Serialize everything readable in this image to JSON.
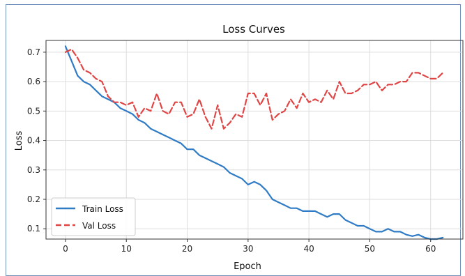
{
  "chart_data": {
    "type": "line",
    "title": "Loss Curves",
    "xlabel": "Epoch",
    "ylabel": "Loss",
    "xlim": [
      -3.2,
      65.3
    ],
    "ylim": [
      0.065,
      0.74
    ],
    "xticks": [
      0,
      10,
      20,
      30,
      40,
      50,
      60
    ],
    "yticks": [
      0.1,
      0.2,
      0.3,
      0.4,
      0.5,
      0.6,
      0.7
    ],
    "grid": true,
    "legend": "lower-left",
    "colors": {
      "train": "#2f7bc5",
      "val": "#e04545"
    },
    "x": [
      0,
      1,
      2,
      3,
      4,
      5,
      6,
      7,
      8,
      9,
      10,
      11,
      12,
      13,
      14,
      15,
      16,
      17,
      18,
      19,
      20,
      21,
      22,
      23,
      24,
      25,
      26,
      27,
      28,
      29,
      30,
      31,
      32,
      33,
      34,
      35,
      36,
      37,
      38,
      39,
      40,
      41,
      42,
      43,
      44,
      45,
      46,
      47,
      48,
      49,
      50,
      51,
      52,
      53,
      54,
      55,
      56,
      57,
      58,
      59,
      60,
      61,
      62
    ],
    "series": [
      {
        "name": "Train Loss",
        "style": "solid",
        "values": [
          0.72,
          0.67,
          0.62,
          0.6,
          0.59,
          0.57,
          0.55,
          0.54,
          0.53,
          0.51,
          0.5,
          0.49,
          0.47,
          0.46,
          0.44,
          0.43,
          0.42,
          0.41,
          0.4,
          0.39,
          0.37,
          0.37,
          0.35,
          0.34,
          0.33,
          0.32,
          0.31,
          0.29,
          0.28,
          0.27,
          0.25,
          0.26,
          0.25,
          0.23,
          0.2,
          0.19,
          0.18,
          0.17,
          0.17,
          0.16,
          0.16,
          0.16,
          0.15,
          0.14,
          0.15,
          0.15,
          0.13,
          0.12,
          0.11,
          0.11,
          0.1,
          0.09,
          0.09,
          0.1,
          0.09,
          0.09,
          0.08,
          0.075,
          0.08,
          0.07,
          0.065,
          0.065,
          0.07
        ]
      },
      {
        "name": "Val Loss",
        "style": "dashed",
        "values": [
          0.7,
          0.71,
          0.68,
          0.64,
          0.63,
          0.61,
          0.6,
          0.55,
          0.53,
          0.53,
          0.52,
          0.53,
          0.48,
          0.51,
          0.5,
          0.56,
          0.5,
          0.49,
          0.53,
          0.53,
          0.48,
          0.49,
          0.54,
          0.48,
          0.44,
          0.52,
          0.44,
          0.46,
          0.49,
          0.48,
          0.56,
          0.56,
          0.52,
          0.56,
          0.47,
          0.49,
          0.5,
          0.54,
          0.51,
          0.56,
          0.53,
          0.54,
          0.53,
          0.57,
          0.54,
          0.6,
          0.56,
          0.56,
          0.57,
          0.59,
          0.59,
          0.6,
          0.57,
          0.59,
          0.59,
          0.6,
          0.6,
          0.63,
          0.63,
          0.62,
          0.61,
          0.61,
          0.63
        ]
      }
    ]
  }
}
